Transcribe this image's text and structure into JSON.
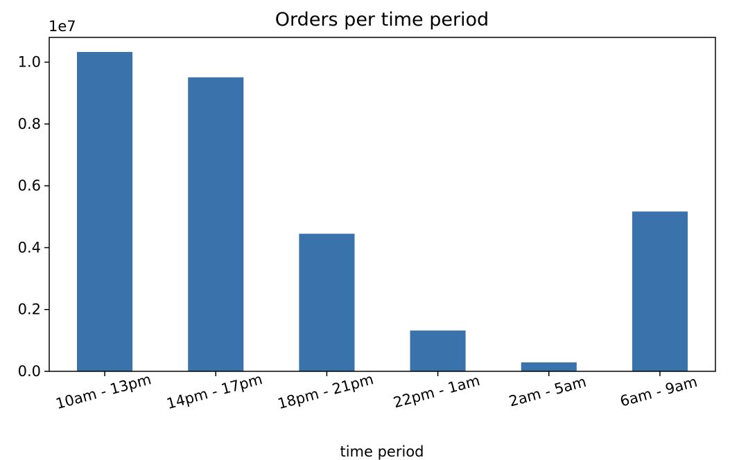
{
  "chart_data": {
    "type": "bar",
    "title": "Orders per time period",
    "xlabel": "time period",
    "ylabel": "",
    "offset_label": "1e7",
    "categories": [
      "10am - 13pm",
      "14pm - 17pm",
      "18pm - 21pm",
      "22pm - 1am",
      "2am - 5am",
      "6am - 9am"
    ],
    "values": [
      10330000,
      9510000,
      4450000,
      1320000,
      290000,
      5170000
    ],
    "ylim": [
      0,
      10800000
    ],
    "yticks": [
      {
        "value": 0,
        "label": "0.0"
      },
      {
        "value": 2000000,
        "label": "0.2"
      },
      {
        "value": 4000000,
        "label": "0.4"
      },
      {
        "value": 6000000,
        "label": "0.6"
      },
      {
        "value": 8000000,
        "label": "0.8"
      },
      {
        "value": 10000000,
        "label": "1.0"
      }
    ],
    "bar_color": "#3a73ab",
    "grid": false,
    "legend": false
  }
}
